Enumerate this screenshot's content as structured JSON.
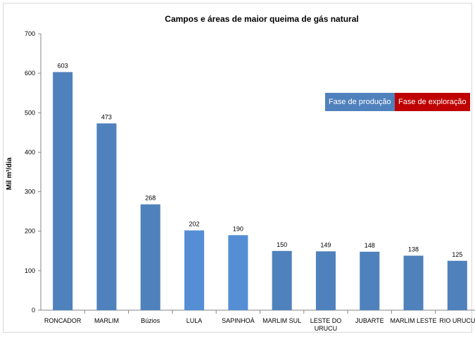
{
  "chart_data": {
    "type": "bar",
    "title": "Campos e áreas de maior queima de gás natural",
    "ylabel": "Mil m³/dia",
    "xlabel": "",
    "ylim": [
      0,
      700
    ],
    "yticks": [
      0,
      100,
      200,
      300,
      400,
      500,
      600,
      700
    ],
    "grid": false,
    "categories": [
      [
        "RONCADOR"
      ],
      [
        "MARLIM"
      ],
      [
        "Búzios"
      ],
      [
        "LULA"
      ],
      [
        "SAPINHOÁ"
      ],
      [
        "MARLIM SUL"
      ],
      [
        "LESTE DO",
        "URUCU"
      ],
      [
        "JUBARTE"
      ],
      [
        "MARLIM LESTE"
      ],
      [
        "RIO URUCU"
      ]
    ],
    "values": [
      603,
      473,
      268,
      202,
      190,
      150,
      149,
      148,
      138,
      125
    ],
    "bar_colors": [
      "#4f81bd",
      "#4f81bd",
      "#4f81bd",
      "#558ed5",
      "#558ed5",
      "#4f81bd",
      "#4f81bd",
      "#4f81bd",
      "#4f81bd",
      "#4f81bd"
    ],
    "legend_placement": "right",
    "legend": [
      {
        "label": "Fase de produção",
        "color": "#4f81bd"
      },
      {
        "label": "Fase de exploração",
        "color": "#c00000"
      }
    ]
  }
}
